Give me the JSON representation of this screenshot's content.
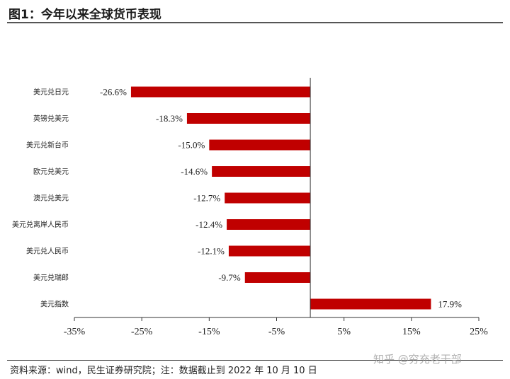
{
  "header": {
    "title": "图1：今年以来全球货币表现"
  },
  "footer": {
    "source": "资料来源：wind，民生证券研究院；注：数据截止到 2022 年 10 月 10 日"
  },
  "watermark": {
    "text": "知乎 @穷充老干部"
  },
  "colors": {
    "bar": "#c00000",
    "axis": "#333333"
  },
  "chart_data": {
    "type": "bar",
    "orientation": "horizontal",
    "categories": [
      "美元兑日元",
      "英镑兑美元",
      "美元兑新台币",
      "欧元兑美元",
      "澳元兑美元",
      "美元兑离岸人民币",
      "美元兑人民币",
      "美元兑瑞郎",
      "美元指数"
    ],
    "values": [
      -26.6,
      -18.3,
      -15.0,
      -14.6,
      -12.7,
      -12.4,
      -12.1,
      -9.7,
      17.9
    ],
    "value_labels": [
      "-26.6%",
      "-18.3%",
      "-15.0%",
      "-14.6%",
      "-12.7%",
      "-12.4%",
      "-12.1%",
      "-9.7%",
      "17.9%"
    ],
    "xlim": [
      -35,
      25
    ],
    "xticks": [
      -35,
      -25,
      -15,
      -5,
      5,
      15,
      25
    ],
    "xtick_labels": [
      "-35%",
      "-25%",
      "-15%",
      "-5%",
      "5%",
      "15%",
      "25%"
    ],
    "grid": false,
    "legend": "none"
  }
}
